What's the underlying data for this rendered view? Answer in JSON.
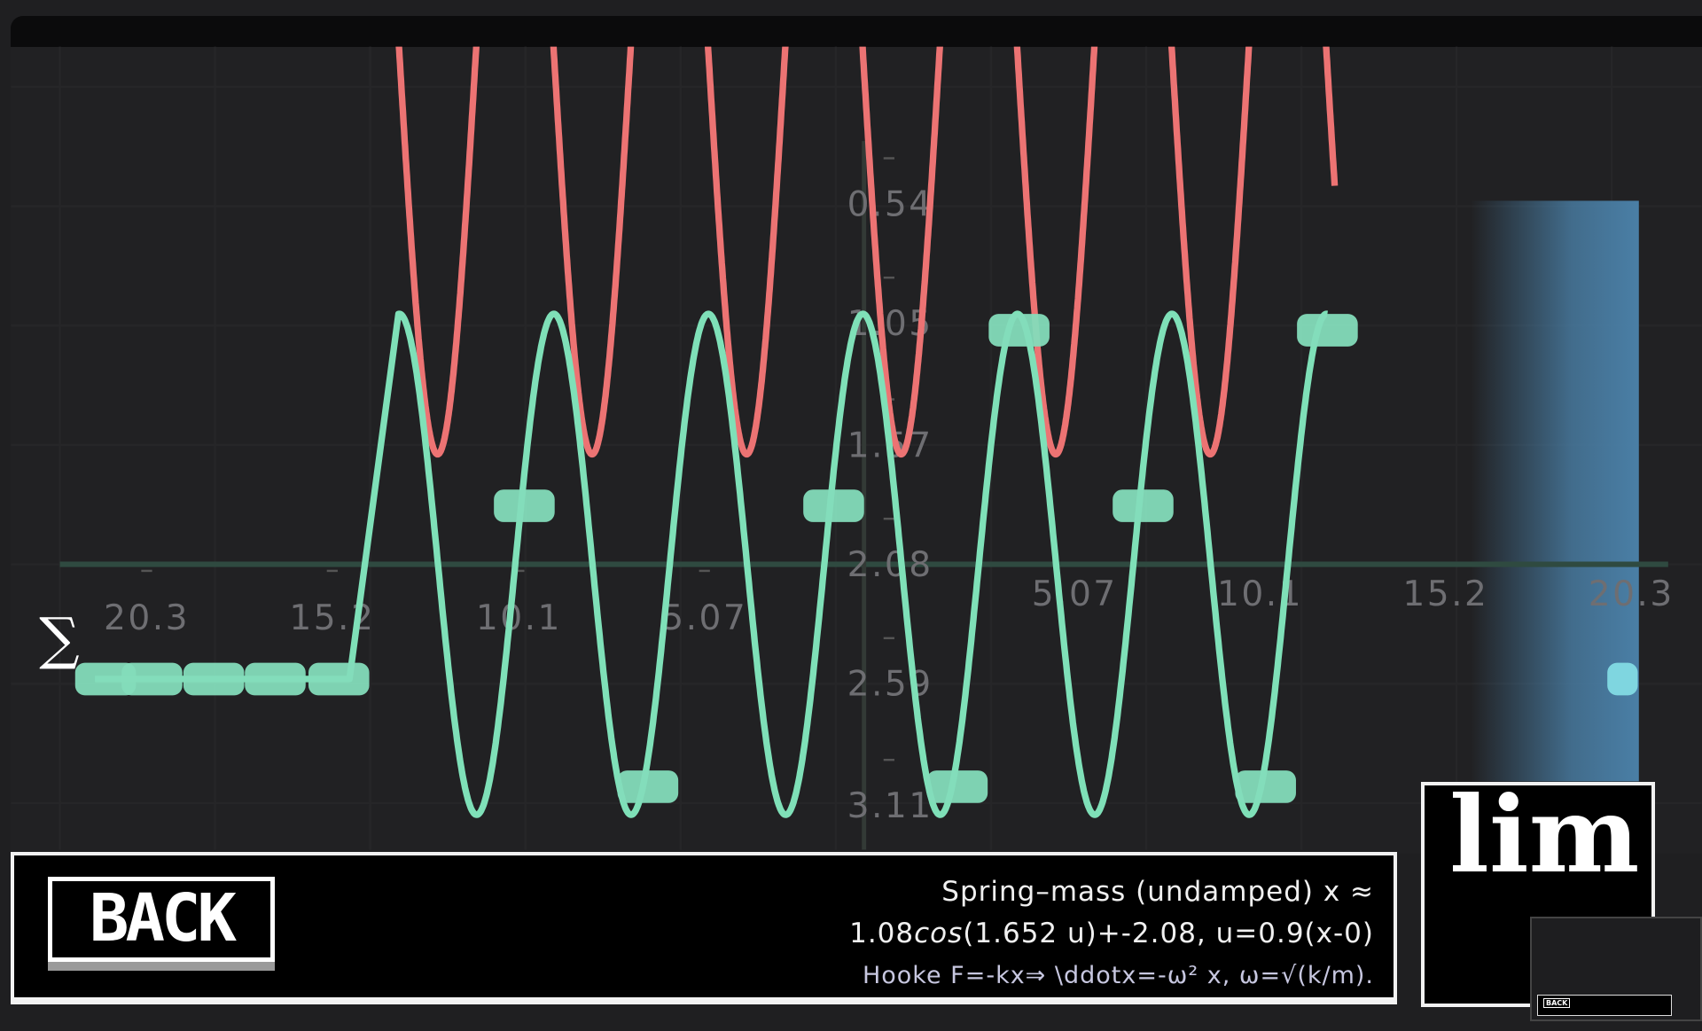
{
  "chart_data": {
    "type": "line",
    "title": "",
    "xlabel": "",
    "ylabel": "",
    "y_axis_inverted": true,
    "grid": true,
    "xlim": [
      -21.5,
      21.5
    ],
    "ylim": [
      -0.13,
      3.32
    ],
    "x_ticks_left": [
      "20.3",
      "15.2",
      "10.1",
      "5.07"
    ],
    "x_ticks_right": [
      "5.07",
      "10.1",
      "15.2",
      "20.3"
    ],
    "y_ticks": [
      "0.54",
      "1.05",
      "1.57",
      "2.08",
      "2.59",
      "3.11"
    ],
    "y_tick_values": [
      0.54,
      1.05,
      1.57,
      2.08,
      2.59,
      3.11
    ],
    "series": [
      {
        "color": "#7fe0b8",
        "formula": "2.08 - 1.07cos(1.487x)",
        "x_range": [
          -12.7,
          12.7
        ],
        "flat_start": {
          "x": [
            -21,
            -14.04
          ],
          "y": 2.57
        }
      },
      {
        "color": "#ec7373",
        "formula": "1.61 - 3.48(1-cos(1.487(x+11.63)))/2",
        "x_range": [
          -12.76,
          12.9
        ]
      }
    ],
    "markers": [
      {
        "x": -20.71,
        "y": 2.57
      },
      {
        "x": -19.44,
        "y": 2.57
      },
      {
        "x": -17.75,
        "y": 2.57
      },
      {
        "x": -16.07,
        "y": 2.57
      },
      {
        "x": -14.33,
        "y": 2.57
      },
      {
        "x": -9.26,
        "y": 1.83
      },
      {
        "x": -0.8,
        "y": 1.83
      },
      {
        "x": 7.66,
        "y": 1.83
      },
      {
        "x": 4.27,
        "y": 1.08
      },
      {
        "x": 12.7,
        "y": 1.08
      },
      {
        "x": -5.88,
        "y": 3.03
      },
      {
        "x": 2.58,
        "y": 3.03
      },
      {
        "x": 11.01,
        "y": 3.03
      }
    ],
    "highlight_marker": {
      "x": 20.77,
      "y": 2.57,
      "color": "#7fd6e0"
    },
    "highlight_band_color": "#4a7fa6",
    "annotation": "∑"
  },
  "caption": {
    "logo": "BACK",
    "line1": "Spring–mass (undamped) x ≈",
    "line2_a": "1.08",
    "line2_cos": "cos",
    "line2_b": "(1.652 u)+-2.08,  u=0.9(x-0)",
    "line3": "Hooke F=-kx⇒ \\ddotx=-ω² x, ω=√(k/m)."
  },
  "thumbnail": {
    "text": "lim",
    "mini_logo": "BACK"
  }
}
